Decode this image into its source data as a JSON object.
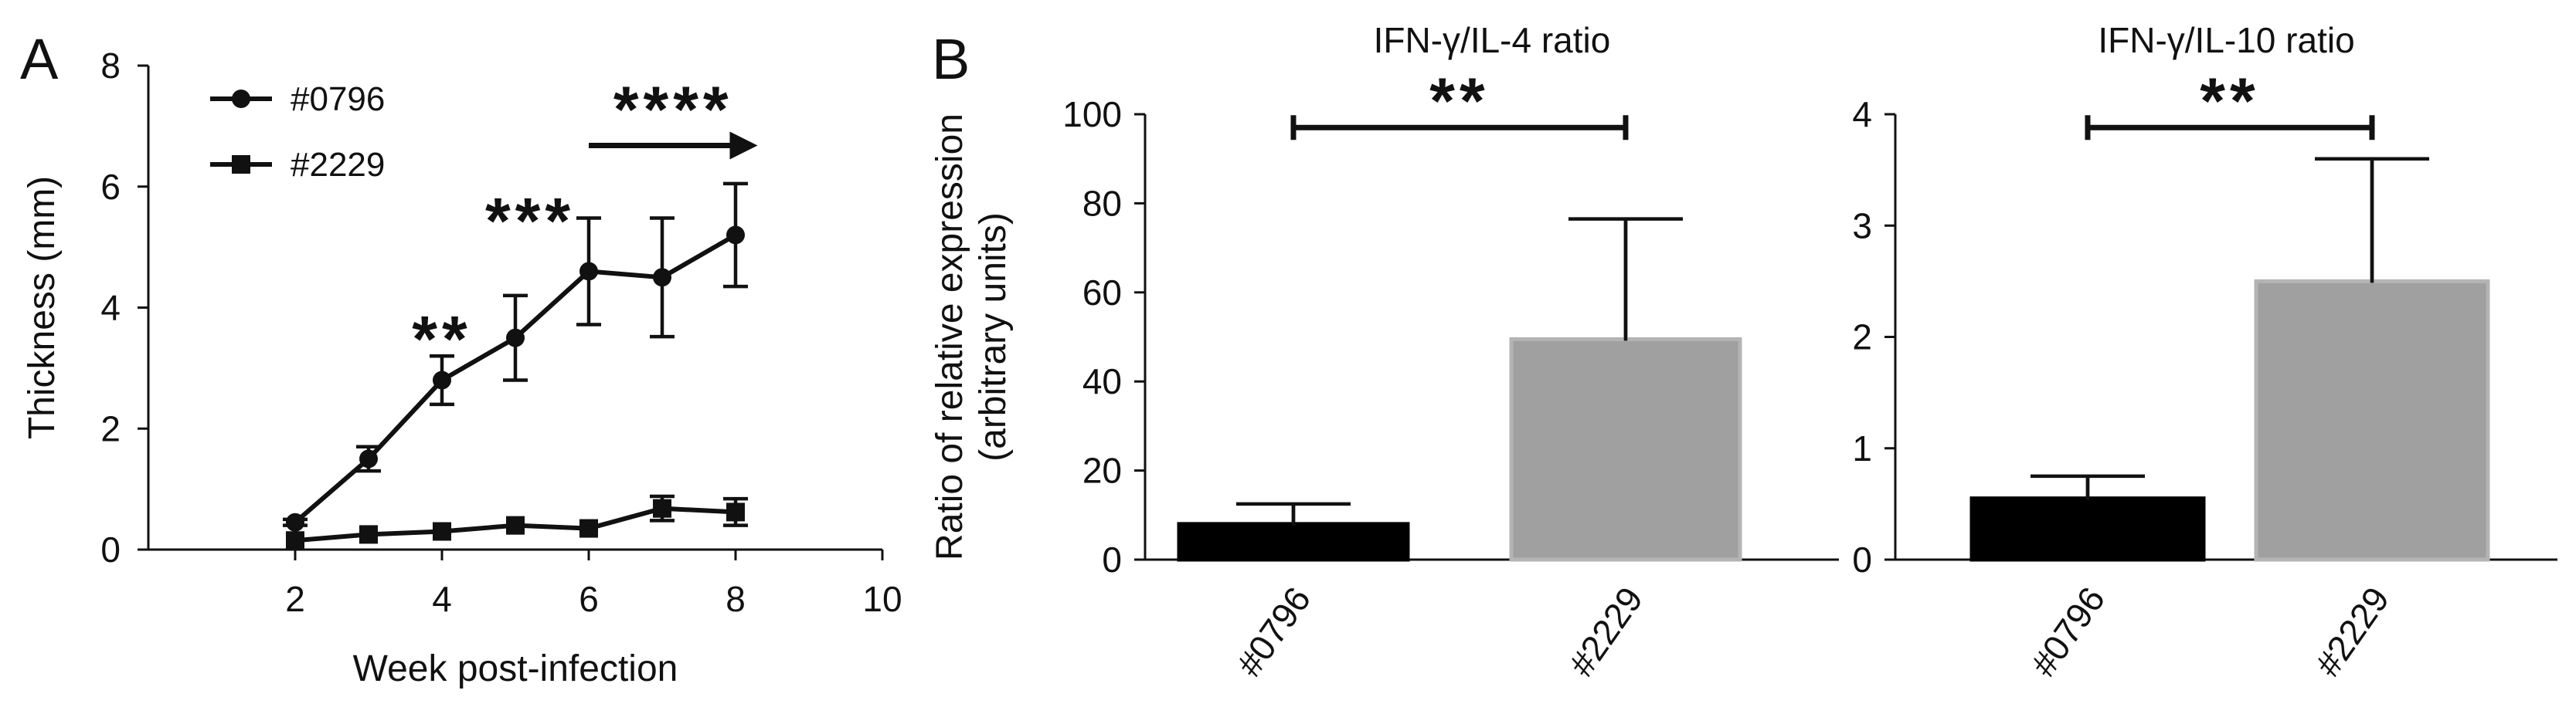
{
  "panels": {
    "a": {
      "letter": "A"
    },
    "b": {
      "letter": "B"
    }
  },
  "colors": {
    "ink": "#111111",
    "bar_0796": "#000000",
    "bar_2229": "#a0a0a0",
    "bar_2229_edge": "#b4b4b4"
  },
  "chart_data": [
    {
      "id": "thickness",
      "type": "line",
      "title": "",
      "xlabel": "Week post-infection",
      "ylabel": "Thickness (mm)",
      "xlim": [
        0,
        10
      ],
      "ylim": [
        0,
        8
      ],
      "xticks": [
        2,
        4,
        6,
        8,
        10
      ],
      "yticks": [
        0,
        2,
        4,
        6,
        8
      ],
      "legend_position": "top-left",
      "series": [
        {
          "name": "#0796",
          "marker": "circle",
          "x": [
            2,
            3,
            4,
            5,
            6,
            7,
            8
          ],
          "y": [
            0.45,
            1.5,
            2.8,
            3.5,
            4.6,
            4.5,
            5.2
          ],
          "error": [
            0.05,
            0.2,
            0.4,
            0.7,
            0.88,
            0.98,
            0.85
          ]
        },
        {
          "name": "#2229",
          "marker": "square",
          "x": [
            2,
            3,
            4,
            5,
            6,
            7,
            8
          ],
          "y": [
            0.15,
            0.25,
            0.3,
            0.4,
            0.35,
            0.68,
            0.62
          ],
          "error": [
            0.0,
            0.0,
            0.0,
            0.0,
            0.0,
            0.2,
            0.22
          ]
        }
      ],
      "annotations": [
        {
          "text": "**",
          "x": 4,
          "y": 3.55
        },
        {
          "text": "***",
          "x": 5.2,
          "y": 5.5
        },
        {
          "text": "****",
          "x_start": 6,
          "x_end": 8.3,
          "y": 6.68,
          "arrow": true
        }
      ]
    },
    {
      "id": "ifn_il4",
      "type": "bar",
      "title": "IFN-γ/IL-4 ratio",
      "xlabel": "",
      "ylabel": "Ratio of relative expression",
      "ylabel2": "(arbitrary units)",
      "ylim": [
        0,
        100
      ],
      "yticks": [
        0,
        20,
        40,
        60,
        80,
        100
      ],
      "categories": [
        "#0796",
        "#2229"
      ],
      "values": [
        8,
        49.5
      ],
      "error": [
        4.5,
        27
      ],
      "significance": {
        "text": "**",
        "y": 97
      }
    },
    {
      "id": "ifn_il10",
      "type": "bar",
      "title": "IFN-γ/IL-10 ratio",
      "xlabel": "",
      "ylabel": "",
      "ylim": [
        0,
        4
      ],
      "yticks": [
        0,
        1,
        2,
        3,
        4
      ],
      "categories": [
        "#0796",
        "#2229"
      ],
      "values": [
        0.55,
        2.5
      ],
      "error": [
        0.2,
        1.1
      ],
      "significance": {
        "text": "**",
        "y": 3.88
      }
    }
  ]
}
